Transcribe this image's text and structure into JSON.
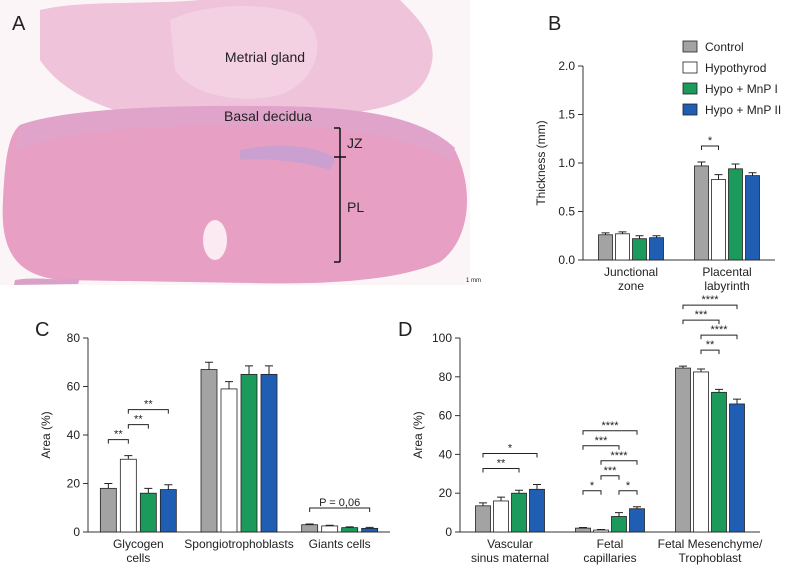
{
  "panel_a": {
    "label": "A",
    "annotations": [
      "Metrial gland",
      "Basal decidua",
      "JZ",
      "PL"
    ],
    "scale_bar": "1 mm"
  },
  "chart_data": [
    {
      "type": "bar",
      "panel": "B",
      "ylabel": "Thickness (mm)",
      "categories": [
        "Junctional\nzone",
        "Placental\nlabyrinth"
      ],
      "ylim": [
        0,
        2
      ],
      "yticks": [
        {
          "value": 0,
          "label": "0.0"
        },
        {
          "value": 0.5,
          "label": "0.5"
        },
        {
          "value": 1,
          "label": "1.0"
        },
        {
          "value": 1.5,
          "label": "1.5"
        },
        {
          "value": 2,
          "label": "2.0"
        }
      ],
      "legend": "upper right",
      "series": [
        {
          "name": "Control",
          "color": "#a3a3a3",
          "values": [
            0.26,
            0.97
          ],
          "errors": [
            0.02,
            0.04
          ]
        },
        {
          "name": "Hypothyrod",
          "color": "#ffffff",
          "values": [
            0.27,
            0.83
          ],
          "errors": [
            0.02,
            0.05
          ]
        },
        {
          "name": "Hypo + MnP I",
          "color": "#1b9a5c",
          "values": [
            0.22,
            0.94
          ],
          "errors": [
            0.03,
            0.05
          ]
        },
        {
          "name": "Hypo + MnP II",
          "color": "#1f5eb3",
          "values": [
            0.23,
            0.87
          ],
          "errors": [
            0.02,
            0.03
          ]
        }
      ],
      "significance": [
        {
          "category": "Placental\nlabyrinth",
          "from": "Control",
          "to": "Hypothyrod",
          "text": "*"
        }
      ]
    },
    {
      "type": "bar",
      "panel": "C",
      "ylabel": "Area (%)",
      "categories": [
        "Glycogen\ncells",
        "Spongiotrophoblasts",
        "Giants cells"
      ],
      "ylim": [
        0,
        80
      ],
      "yticks": [
        0,
        20,
        40,
        60,
        80
      ],
      "series": [
        {
          "name": "Control",
          "color": "#a3a3a3",
          "values": [
            18,
            67,
            3
          ],
          "errors": [
            2,
            3,
            0.3
          ]
        },
        {
          "name": "Hypothyrod",
          "color": "#ffffff",
          "values": [
            30,
            59,
            2.5
          ],
          "errors": [
            1.5,
            3,
            0.3
          ]
        },
        {
          "name": "Hypo + MnP I",
          "color": "#1b9a5c",
          "values": [
            16,
            65,
            1.8
          ],
          "errors": [
            2,
            3.5,
            0.3
          ]
        },
        {
          "name": "Hypo + MnP II",
          "color": "#1f5eb3",
          "values": [
            17.5,
            65,
            1.5
          ],
          "errors": [
            2,
            3.5,
            0.4
          ]
        }
      ],
      "significance": [
        {
          "category": "Glycogen\ncells",
          "from": "Control",
          "to": "Hypothyrod",
          "text": "**"
        },
        {
          "category": "Glycogen\ncells",
          "from": "Hypothyrod",
          "to": "Hypo + MnP I",
          "text": "**"
        },
        {
          "category": "Glycogen\ncells",
          "from": "Hypothyrod",
          "to": "Hypo + MnP II",
          "text": "**"
        },
        {
          "category": "Giants cells",
          "from": "Control",
          "to": "Hypo + MnP II",
          "text": "P = 0,06"
        }
      ]
    },
    {
      "type": "bar",
      "panel": "D",
      "ylabel": "Area (%)",
      "categories": [
        "Vascular\nsinus maternal",
        "Fetal\ncapillaries",
        "Fetal Mesenchyme/\nTrophoblast"
      ],
      "ylim": [
        0,
        100
      ],
      "yticks": [
        0,
        20,
        40,
        60,
        80,
        100
      ],
      "series": [
        {
          "name": "Control",
          "color": "#a3a3a3",
          "values": [
            13.5,
            2,
            84.5
          ],
          "errors": [
            1.5,
            0.3,
            1
          ]
        },
        {
          "name": "Hypothyrod",
          "color": "#ffffff",
          "values": [
            16,
            1,
            82.5
          ],
          "errors": [
            2,
            0.3,
            1.5
          ]
        },
        {
          "name": "Hypo + MnP I",
          "color": "#1b9a5c",
          "values": [
            20,
            8,
            72
          ],
          "errors": [
            1.5,
            2,
            1.5
          ]
        },
        {
          "name": "Hypo + MnP II",
          "color": "#1f5eb3",
          "values": [
            22,
            12,
            66
          ],
          "errors": [
            2.5,
            1,
            2.5
          ]
        }
      ],
      "significance": [
        {
          "category": "Vascular\nsinus maternal",
          "from": "Control",
          "to": "Hypo + MnP I",
          "text": "**"
        },
        {
          "category": "Vascular\nsinus maternal",
          "from": "Control",
          "to": "Hypo + MnP II",
          "text": "*"
        },
        {
          "category": "Fetal\ncapillaries",
          "from": "Control",
          "to": "Hypothyrod",
          "text": "*"
        },
        {
          "category": "Fetal\ncapillaries",
          "from": "Hypothyrod",
          "to": "Hypo + MnP I",
          "text": "***"
        },
        {
          "category": "Fetal\ncapillaries",
          "from": "Hypo + MnP I",
          "to": "Hypo + MnP II",
          "text": "*"
        },
        {
          "category": "Fetal\ncapillaries",
          "from": "Hypothyrod",
          "to": "Hypo + MnP II",
          "text": "****"
        },
        {
          "category": "Fetal\ncapillaries",
          "from": "Control",
          "to": "Hypo + MnP I",
          "text": "***"
        },
        {
          "category": "Fetal\ncapillaries",
          "from": "Control",
          "to": "Hypo + MnP II",
          "text": "****"
        },
        {
          "category": "Fetal Mesenchyme/\nTrophoblast",
          "from": "Hypothyrod",
          "to": "Hypo + MnP I",
          "text": "**"
        },
        {
          "category": "Fetal Mesenchyme/\nTrophoblast",
          "from": "Hypothyrod",
          "to": "Hypo + MnP II",
          "text": "****"
        },
        {
          "category": "Fetal Mesenchyme/\nTrophoblast",
          "from": "Control",
          "to": "Hypo + MnP I",
          "text": "***"
        },
        {
          "category": "Fetal Mesenchyme/\nTrophoblast",
          "from": "Control",
          "to": "Hypo + MnP II",
          "text": "****"
        }
      ]
    }
  ]
}
